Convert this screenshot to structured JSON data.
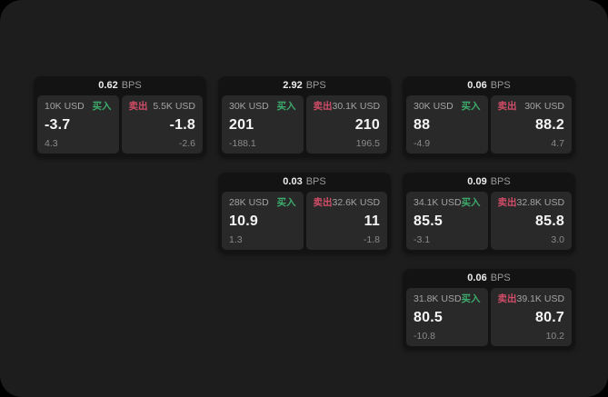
{
  "labels": {
    "bps": "BPS",
    "buy": "买入",
    "sell": "卖出"
  },
  "colors": {
    "page_bg": "#000000",
    "canvas": "#1d1d1e",
    "card": "#131314",
    "tile": "#29292a",
    "buy": "#3cab6b",
    "sell": "#cf4d66",
    "value_text": "#f5f5f5",
    "label_text": "#a3a3a3",
    "sub_text": "#8a8a8a",
    "header_unit_text": "#9a9a9a"
  },
  "cards": [
    {
      "bps": "0.62",
      "buy": {
        "amount": "10K USD",
        "value": "-3.7",
        "sub": "4.3"
      },
      "sell": {
        "amount": "5.5K USD",
        "value": "-1.8",
        "sub": "-2.6"
      }
    },
    {
      "bps": "2.92",
      "buy": {
        "amount": "30K USD",
        "value": "201",
        "sub": "-188.1"
      },
      "sell": {
        "amount": "30.1K USD",
        "value": "210",
        "sub": "196.5"
      }
    },
    {
      "bps": "0.06",
      "buy": {
        "amount": "30K USD",
        "value": "88",
        "sub": "-4.9"
      },
      "sell": {
        "amount": "30K USD",
        "value": "88.2",
        "sub": "4.7"
      }
    },
    {
      "bps": "0.03",
      "buy": {
        "amount": "28K USD",
        "value": "10.9",
        "sub": "1.3"
      },
      "sell": {
        "amount": "32.6K USD",
        "value": "11",
        "sub": "-1.8"
      }
    },
    {
      "bps": "0.09",
      "buy": {
        "amount": "34.1K USD",
        "value": "85.5",
        "sub": "-3.1"
      },
      "sell": {
        "amount": "32.8K USD",
        "value": "85.8",
        "sub": "3.0"
      }
    },
    {
      "bps": "0.06",
      "buy": {
        "amount": "31.8K USD",
        "value": "80.5",
        "sub": "-10.8"
      },
      "sell": {
        "amount": "39.1K USD",
        "value": "80.7",
        "sub": "10.2"
      }
    }
  ]
}
